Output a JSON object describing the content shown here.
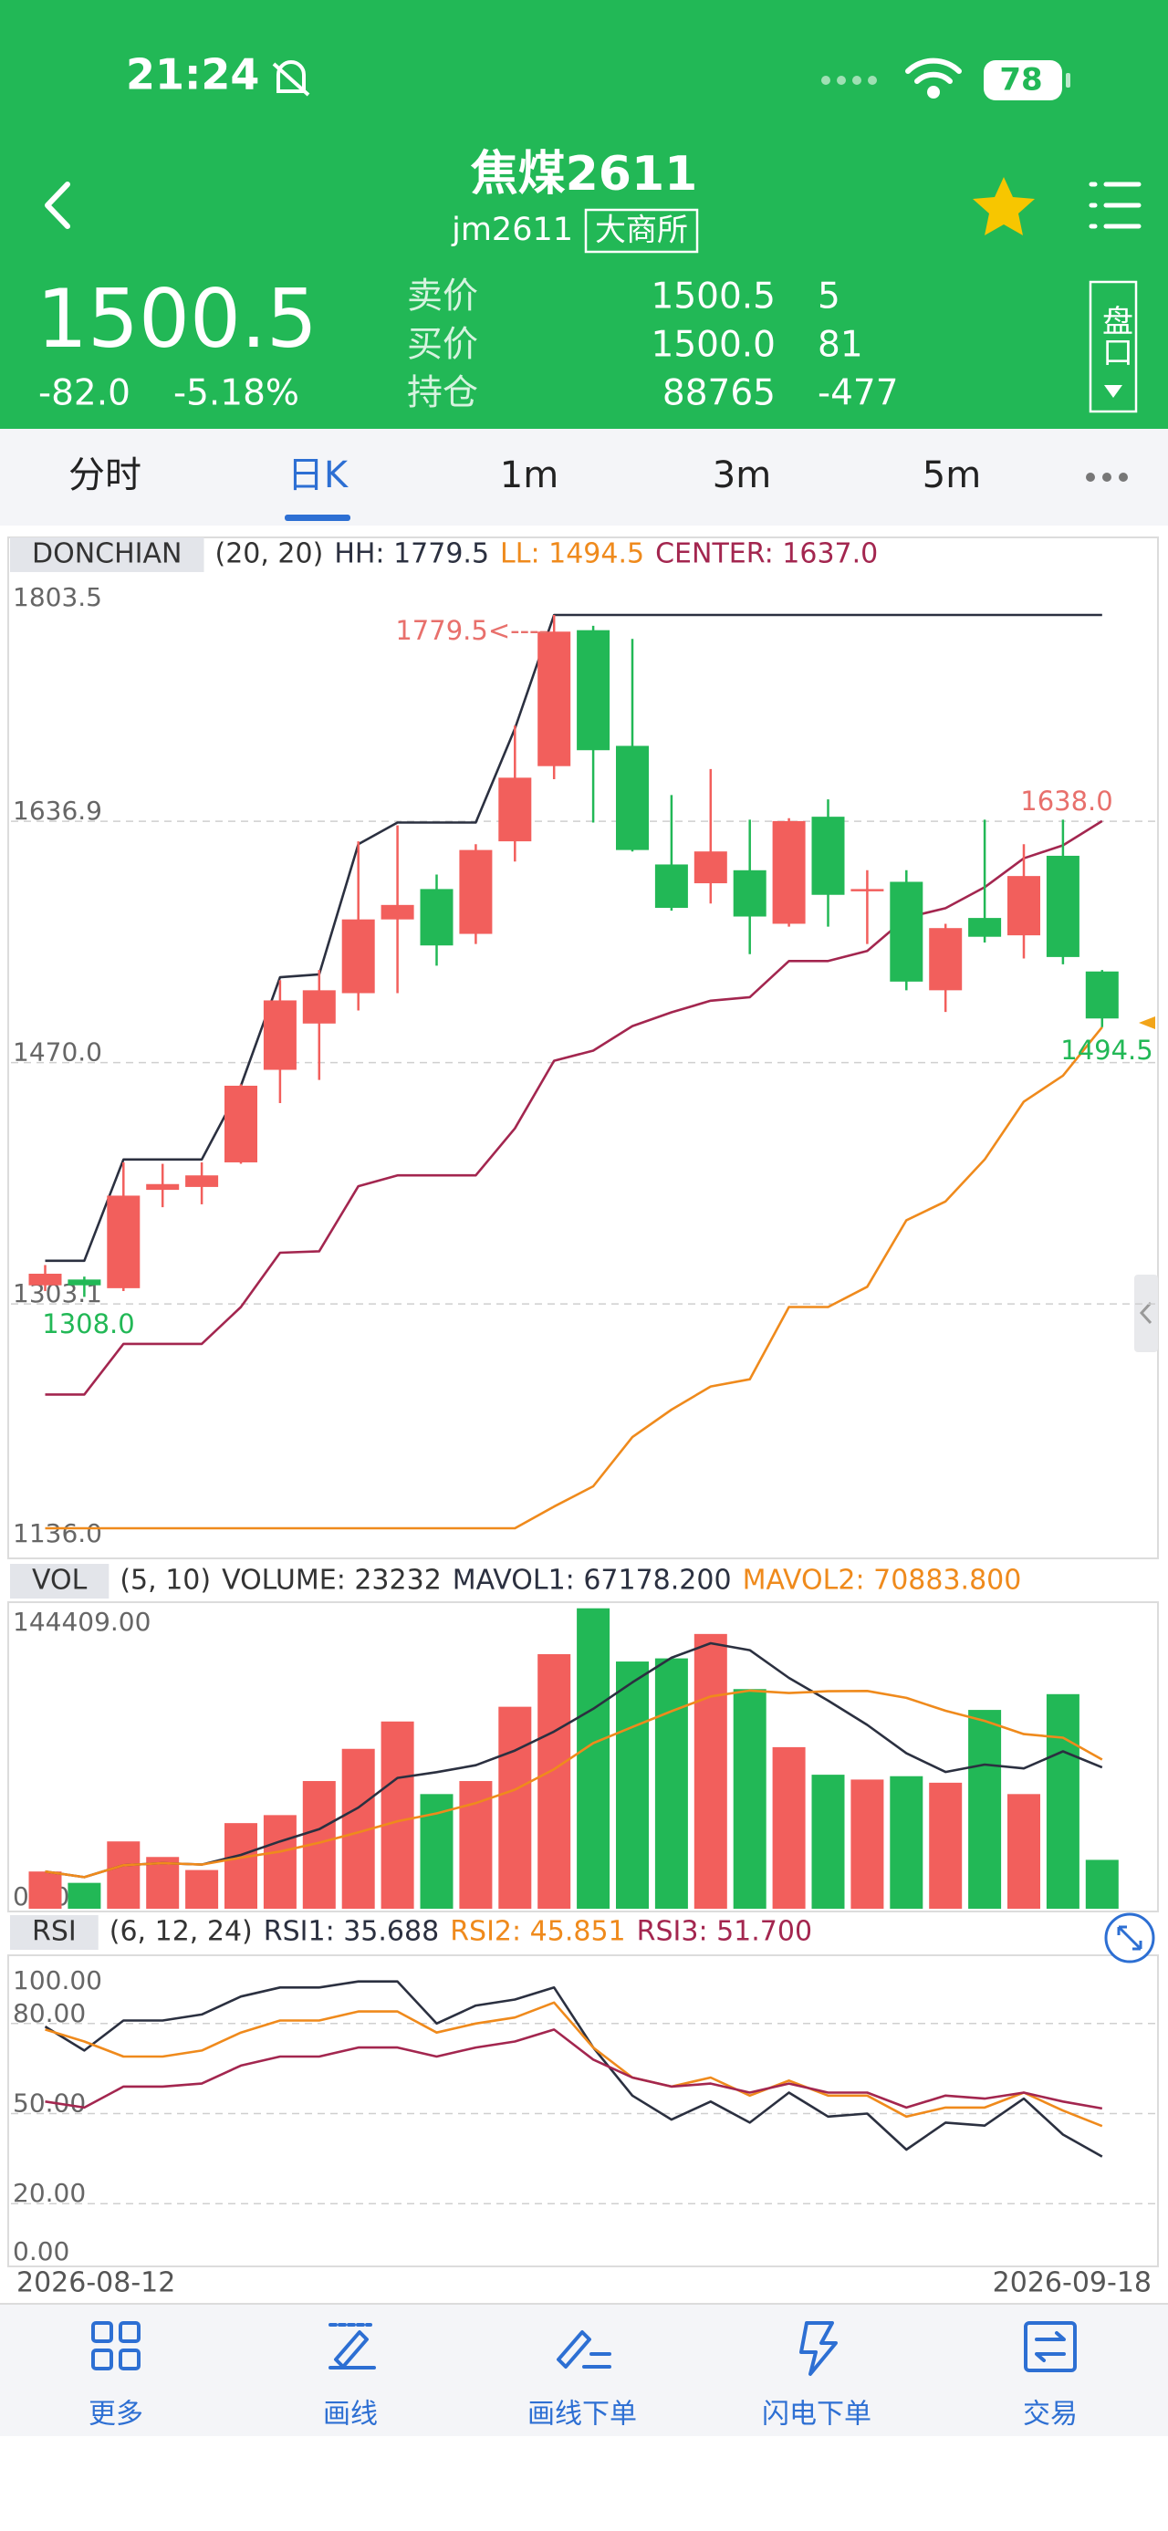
{
  "status_bar": {
    "time": "21:24",
    "battery": "78"
  },
  "header": {
    "title": "焦煤2611",
    "code": "jm2611",
    "exchange": "大商所"
  },
  "quote": {
    "price": "1500.5",
    "change": "-82.0",
    "change_pct": "-5.18%",
    "ask_label": "卖价",
    "ask": "1500.5",
    "ask_vol": "5",
    "bid_label": "买价",
    "bid": "1500.0",
    "bid_vol": "81",
    "oi_label": "持仓",
    "oi": "88765",
    "oi_change": "-477",
    "panel_button": "盘口"
  },
  "tabs": [
    "分时",
    "日K",
    "1m",
    "3m",
    "5m"
  ],
  "chart_data": [
    {
      "type": "candlestick",
      "legend": [
        "DONCHIAN",
        "(20, 20)",
        "HH: 1779.5",
        "LL: 1494.5",
        "CENTER: 1637.0"
      ],
      "categories": [
        "2026-08-12",
        null,
        null,
        null,
        null,
        null,
        null,
        null,
        null,
        null,
        null,
        null,
        null,
        null,
        null,
        null,
        null,
        null,
        null,
        null,
        null,
        null,
        null,
        null,
        null,
        null,
        null,
        "2026-09-18"
      ],
      "open": [
        1316,
        1320,
        1314,
        1382,
        1384,
        1401,
        1465,
        1497,
        1518,
        1569,
        1590,
        1559,
        1623,
        1675,
        1769,
        1689,
        1607,
        1594,
        1603,
        1566,
        1640,
        1590,
        1595,
        1520,
        1570,
        1558,
        1613,
        1533
      ],
      "high": [
        1330,
        1322,
        1401,
        1400,
        1401,
        1455,
        1527,
        1534,
        1623,
        1634,
        1600,
        1621,
        1703,
        1779.5,
        1772,
        1763,
        1655,
        1673,
        1638,
        1639,
        1652,
        1603,
        1603,
        1566,
        1638,
        1621,
        1638,
        1534
      ],
      "low": [
        1312,
        1308,
        1312,
        1370,
        1372,
        1400,
        1442,
        1458,
        1506,
        1518,
        1537,
        1552,
        1609,
        1666,
        1636,
        1616,
        1575,
        1580,
        1545,
        1564,
        1564,
        1552,
        1520,
        1505,
        1553,
        1542,
        1538,
        1494.5
      ],
      "close": [
        1324,
        1316,
        1378,
        1386,
        1392,
        1454,
        1513,
        1520,
        1569,
        1579,
        1551,
        1617,
        1667,
        1768,
        1686,
        1617,
        1577,
        1616,
        1571,
        1637,
        1586,
        1590,
        1526,
        1563,
        1557,
        1599,
        1543,
        1500.5
      ],
      "colors": {
        "up": "#f25f5c",
        "down": "#22b856"
      },
      "series": [
        {
          "color": "#2b3040",
          "values": [
            1333,
            1333,
            1403,
            1403,
            1403,
            1454,
            1529,
            1531,
            1621,
            1636,
            1636,
            1636,
            1701,
            1779.5,
            1779.5,
            1779.5,
            1779.5,
            1779.5,
            1779.5,
            1779.5,
            1779.5,
            1779.5,
            1779.5,
            1779.5,
            1779.5,
            1779.5,
            1779.5,
            1779.5
          ]
        },
        {
          "color": "#ef8a1c",
          "values": [
            1148,
            1148,
            1148,
            1148,
            1148,
            1148,
            1148,
            1148,
            1148,
            1148,
            1148,
            1148,
            1148,
            1163,
            1177,
            1211,
            1230,
            1246,
            1251,
            1301,
            1301,
            1315,
            1361,
            1374,
            1403,
            1443,
            1461,
            1494.5
          ]
        },
        {
          "color": "#a3264f",
          "values": [
            1240.5,
            1240.5,
            1275.5,
            1275.5,
            1275.5,
            1301,
            1338.5,
            1339.5,
            1384.5,
            1392,
            1392,
            1392,
            1424.5,
            1471.25,
            1478.25,
            1495.25,
            1504.75,
            1512.75,
            1515.25,
            1540.25,
            1540.25,
            1547.25,
            1570.25,
            1576.75,
            1591.25,
            1611.25,
            1620.25,
            1637.0
          ]
        }
      ],
      "ylim": [
        1136,
        1803.5
      ],
      "yticks": [
        1803.5,
        1636.9,
        {
          "value": 1470,
          "label": "1470.0"
        },
        1303.1,
        {
          "value": 1136,
          "label": "1136.0"
        }
      ],
      "grid": true,
      "annotations": [
        "1779.5<----",
        "1638.0",
        "1494.5",
        "1308.0"
      ]
    },
    {
      "type": "bar",
      "legend": [
        "VOL",
        "(5, 10)",
        "VOLUME: 23232",
        "MAVOL1: 67178.200",
        "MAVOL2: 70883.800"
      ],
      "values": [
        17700,
        12300,
        32000,
        24600,
        18400,
        40700,
        44500,
        60700,
        76000,
        89000,
        54500,
        60700,
        96000,
        121000,
        142800,
        117500,
        119000,
        130600,
        104400,
        76800,
        63700,
        61400,
        63000,
        59900,
        94500,
        54500,
        102000,
        23232
      ],
      "series": [
        {
          "color": "#2b3040",
          "values": [
            17700,
            15000,
            20700,
            21700,
            21000,
            25600,
            32000,
            37800,
            48100,
            62200,
            64900,
            68200,
            75200,
            84200,
            95000,
            107600,
            119300,
            126200,
            122900,
            109700,
            98900,
            87400,
            73900,
            65000,
            68500,
            66700,
            74800,
            67178.2
          ]
        },
        {
          "color": "#ef8a1c",
          "values": [
            17700,
            15000,
            20700,
            21700,
            21000,
            24300,
            27200,
            31400,
            36300,
            41600,
            45300,
            50200,
            56600,
            66300,
            78700,
            86400,
            93900,
            100900,
            103700,
            102500,
            103400,
            103500,
            100200,
            94100,
            89300,
            83000,
            81300,
            70883.8
          ]
        }
      ],
      "ylim": [
        0,
        144409
      ],
      "yticks": [
        {
          "value": 144409,
          "label": "144409.00"
        },
        {
          "value": 0,
          "label": "0.00"
        }
      ],
      "grid": false
    },
    {
      "type": "line",
      "legend": [
        "RSI",
        "(6, 12, 24)",
        "RSI1: 35.688",
        "RSI2: 45.851",
        "RSI3: 51.700"
      ],
      "series": [
        {
          "color": "#2b3040",
          "values": [
            79,
            71,
            81,
            81,
            83,
            89,
            92,
            92,
            94,
            94,
            80,
            86,
            88,
            92,
            72,
            56,
            48,
            54,
            47,
            57,
            49,
            50,
            38,
            47,
            46,
            55,
            43,
            35.688
          ]
        },
        {
          "color": "#ef8a1c",
          "values": [
            78,
            74,
            69,
            69,
            71,
            77,
            81,
            81,
            84,
            84,
            77,
            80,
            82,
            87,
            72,
            62,
            59,
            62,
            56,
            61,
            56,
            56,
            49,
            52,
            52,
            57,
            51,
            45.851
          ]
        },
        {
          "color": "#a3264f",
          "values": [
            54,
            52,
            59,
            59,
            60,
            66,
            69,
            69,
            72,
            72,
            69,
            72,
            74,
            78,
            68,
            62,
            59,
            60,
            57,
            60,
            57,
            57,
            52,
            56,
            55,
            57,
            54,
            51.7
          ]
        }
      ],
      "ylim": [
        0,
        100
      ],
      "yticks": [
        {
          "value": 100,
          "label": "100.00"
        },
        {
          "value": 80,
          "label": "80.00"
        },
        {
          "value": 50,
          "label": "50.00"
        },
        {
          "value": 20,
          "label": "20.00"
        },
        {
          "value": 0,
          "label": "0.00"
        }
      ],
      "grid": true
    }
  ],
  "nav": [
    "更多",
    "画线",
    "画线下单",
    "闪电下单",
    "交易"
  ]
}
